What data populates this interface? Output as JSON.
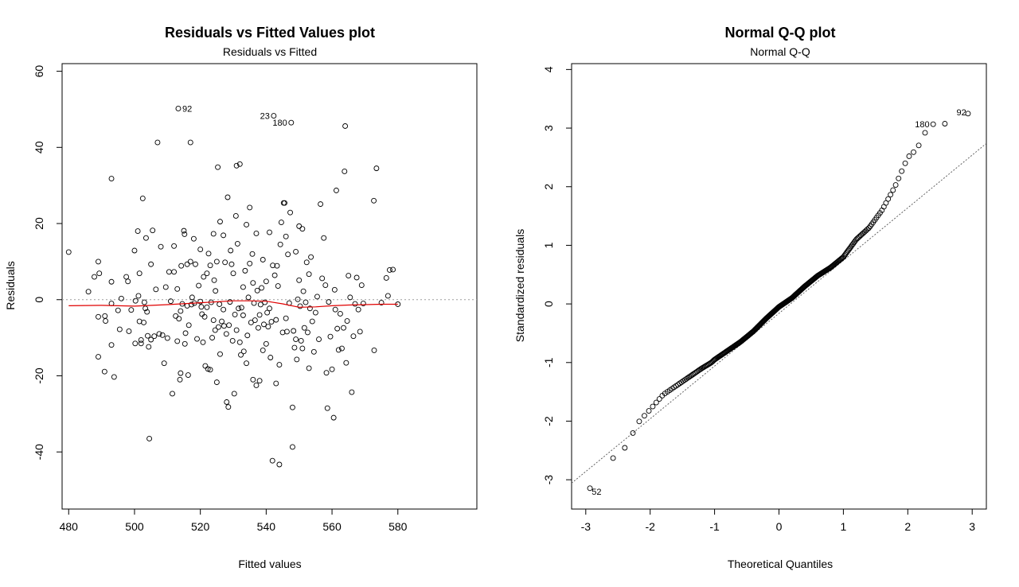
{
  "panels": [
    {
      "title": "Residuals vs Fitted Values plot",
      "subtitle": "Residuals vs Fitted",
      "xlabel": "Fitted values",
      "ylabel": "Residuals"
    },
    {
      "title": "Normal Q-Q plot",
      "subtitle": "Normal Q-Q",
      "xlabel": "Theoretical Quantiles",
      "ylabel": "Standardized residuals"
    }
  ],
  "chart_data": [
    {
      "type": "scatter",
      "title": "Residuals vs Fitted",
      "xlabel": "Fitted values",
      "ylabel": "Residuals",
      "xlim": [
        478,
        604
      ],
      "ylim": [
        -55,
        62
      ],
      "xticks": [
        480,
        500,
        520,
        540,
        560,
        580
      ],
      "yticks": [
        -40,
        -20,
        0,
        20,
        40,
        60
      ],
      "tick_labels_x": [
        "480",
        "500",
        "520",
        "540",
        "560",
        "580"
      ],
      "tick_labels_y": [
        "-40",
        "-20",
        "0",
        "20",
        "40",
        "60"
      ],
      "reference_line_y": 0,
      "points": [
        [
          480.0,
          12.5
        ],
        [
          486.0,
          2.1
        ],
        [
          487.8,
          6.0
        ],
        [
          489.0,
          10.0
        ],
        [
          489.3,
          6.9
        ],
        [
          489.0,
          -4.5
        ],
        [
          489.0,
          -15.0
        ],
        [
          490.9,
          -18.9
        ],
        [
          491.0,
          -4.3
        ],
        [
          491.2,
          -5.6
        ],
        [
          493.0,
          31.8
        ],
        [
          493.0,
          -11.9
        ],
        [
          493.0,
          4.7
        ],
        [
          493.0,
          -1.0
        ],
        [
          493.8,
          -20.3
        ],
        [
          495.0,
          -2.8
        ],
        [
          495.5,
          -7.8
        ],
        [
          496.0,
          0.3
        ],
        [
          497.5,
          6.0
        ],
        [
          498.0,
          4.8
        ],
        [
          498.3,
          -8.3
        ],
        [
          499.0,
          -2.7
        ],
        [
          500.0,
          12.9
        ],
        [
          500.2,
          -11.5
        ],
        [
          500.3,
          -0.3
        ],
        [
          501.0,
          18.0
        ],
        [
          501.2,
          1.0
        ],
        [
          501.5,
          6.9
        ],
        [
          501.5,
          -5.7
        ],
        [
          502.0,
          -10.6
        ],
        [
          502.0,
          -11.5
        ],
        [
          502.5,
          26.6
        ],
        [
          502.8,
          -6.0
        ],
        [
          503.0,
          -0.7
        ],
        [
          503.3,
          -2.3
        ],
        [
          503.5,
          16.2
        ],
        [
          503.8,
          -3.2
        ],
        [
          504.0,
          -9.5
        ],
        [
          504.3,
          -12.4
        ],
        [
          504.5,
          -36.5
        ],
        [
          505.0,
          9.3
        ],
        [
          505.0,
          -10.5
        ],
        [
          505.5,
          18.2
        ],
        [
          506.0,
          -9.6
        ],
        [
          506.5,
          2.7
        ],
        [
          507.0,
          41.3
        ],
        [
          507.5,
          -9.0
        ],
        [
          508.0,
          13.9
        ],
        [
          508.5,
          -9.3
        ],
        [
          509.0,
          -16.7
        ],
        [
          509.5,
          3.3
        ],
        [
          510.0,
          -10.1
        ],
        [
          510.5,
          7.3
        ],
        [
          511.0,
          -0.4
        ],
        [
          511.5,
          -24.7
        ],
        [
          512.0,
          14.1
        ],
        [
          512.0,
          7.3
        ],
        [
          512.5,
          -4.3
        ],
        [
          513.0,
          2.8
        ],
        [
          513.0,
          -10.9
        ],
        [
          513.3,
          50.2
        ],
        [
          513.5,
          -5.0
        ],
        [
          513.8,
          -21.0
        ],
        [
          514.0,
          -19.3
        ],
        [
          514.0,
          -3.0
        ],
        [
          514.2,
          8.9
        ],
        [
          514.5,
          -1.1
        ],
        [
          515.0,
          18.1
        ],
        [
          515.2,
          17.2
        ],
        [
          515.3,
          -11.6
        ],
        [
          515.5,
          -8.8
        ],
        [
          516.0,
          9.3
        ],
        [
          516.0,
          -1.6
        ],
        [
          516.3,
          -19.8
        ],
        [
          516.5,
          -6.7
        ],
        [
          517.0,
          41.3
        ],
        [
          517.0,
          10.0
        ],
        [
          517.3,
          -1.3
        ],
        [
          517.5,
          0.6
        ],
        [
          518.0,
          16.0
        ],
        [
          518.2,
          -0.9
        ],
        [
          518.5,
          9.3
        ],
        [
          519.0,
          -10.3
        ],
        [
          519.5,
          3.7
        ],
        [
          520.0,
          13.2
        ],
        [
          520.0,
          -0.5
        ],
        [
          520.3,
          -1.9
        ],
        [
          520.5,
          -3.8
        ],
        [
          520.8,
          -11.2
        ],
        [
          521.0,
          6.0
        ],
        [
          521.3,
          -4.5
        ],
        [
          521.5,
          -17.4
        ],
        [
          522.0,
          -2.0
        ],
        [
          522.0,
          6.9
        ],
        [
          522.3,
          -18.2
        ],
        [
          522.5,
          12.1
        ],
        [
          523.0,
          -18.4
        ],
        [
          523.0,
          9.0
        ],
        [
          523.3,
          -0.7
        ],
        [
          523.6,
          -10.0
        ],
        [
          524.0,
          17.3
        ],
        [
          524.0,
          -5.4
        ],
        [
          524.2,
          5.1
        ],
        [
          524.5,
          -8.0
        ],
        [
          524.6,
          2.3
        ],
        [
          525.0,
          10.0
        ],
        [
          525.0,
          -21.7
        ],
        [
          525.3,
          34.8
        ],
        [
          525.5,
          -7.2
        ],
        [
          525.8,
          -1.2
        ],
        [
          526.0,
          -14.3
        ],
        [
          526.0,
          20.5
        ],
        [
          526.5,
          -5.7
        ],
        [
          527.0,
          16.9
        ],
        [
          527.0,
          -2.6
        ],
        [
          527.2,
          -6.9
        ],
        [
          527.5,
          9.8
        ],
        [
          527.9,
          -9.0
        ],
        [
          528.0,
          -26.9
        ],
        [
          528.3,
          26.9
        ],
        [
          528.5,
          -28.2
        ],
        [
          528.7,
          -6.7
        ],
        [
          529.0,
          -0.6
        ],
        [
          529.2,
          12.9
        ],
        [
          529.5,
          9.3
        ],
        [
          529.8,
          -10.8
        ],
        [
          530.0,
          6.9
        ],
        [
          530.3,
          -24.7
        ],
        [
          530.5,
          -3.9
        ],
        [
          530.8,
          22.0
        ],
        [
          531.0,
          35.2
        ],
        [
          531.0,
          -8.0
        ],
        [
          531.3,
          14.7
        ],
        [
          531.6,
          -2.3
        ],
        [
          532.0,
          35.6
        ],
        [
          532.0,
          -11.2
        ],
        [
          532.3,
          -14.5
        ],
        [
          532.5,
          -2.1
        ],
        [
          533.0,
          -4.1
        ],
        [
          533.0,
          3.3
        ],
        [
          533.2,
          -13.6
        ],
        [
          533.6,
          7.6
        ],
        [
          534.0,
          -16.7
        ],
        [
          534.0,
          19.7
        ],
        [
          534.3,
          -9.4
        ],
        [
          534.6,
          0.6
        ],
        [
          535.0,
          24.2
        ],
        [
          535.0,
          9.5
        ],
        [
          535.4,
          -6.0
        ],
        [
          535.8,
          12.0
        ],
        [
          536.0,
          -21.0
        ],
        [
          536.0,
          4.4
        ],
        [
          536.3,
          -0.9
        ],
        [
          536.6,
          -5.4
        ],
        [
          537.0,
          -22.5
        ],
        [
          537.0,
          17.4
        ],
        [
          537.3,
          2.4
        ],
        [
          537.6,
          -7.4
        ],
        [
          538.0,
          -21.3
        ],
        [
          538.0,
          -4.0
        ],
        [
          538.3,
          -1.3
        ],
        [
          538.6,
          3.1
        ],
        [
          539.0,
          -13.3
        ],
        [
          539.0,
          10.5
        ],
        [
          539.3,
          -6.5
        ],
        [
          539.6,
          -0.7
        ],
        [
          540.0,
          -11.6
        ],
        [
          540.0,
          4.8
        ],
        [
          540.3,
          -3.4
        ],
        [
          540.6,
          -7.1
        ],
        [
          541.0,
          -2.3
        ],
        [
          541.0,
          17.7
        ],
        [
          541.3,
          -15.2
        ],
        [
          541.6,
          -5.8
        ],
        [
          541.9,
          -42.3
        ],
        [
          542.0,
          9.0
        ],
        [
          542.3,
          48.3
        ],
        [
          542.6,
          6.4
        ],
        [
          543.0,
          -22.0
        ],
        [
          543.0,
          -5.3
        ],
        [
          543.3,
          8.9
        ],
        [
          543.6,
          3.6
        ],
        [
          544.0,
          -17.1
        ],
        [
          544.0,
          -43.3
        ],
        [
          544.3,
          14.5
        ],
        [
          544.6,
          20.3
        ],
        [
          545.0,
          -8.6
        ],
        [
          545.3,
          25.4
        ],
        [
          545.6,
          25.4
        ],
        [
          546.0,
          -4.9
        ],
        [
          546.0,
          16.6
        ],
        [
          546.3,
          -8.4
        ],
        [
          546.6,
          11.9
        ],
        [
          547.0,
          -0.9
        ],
        [
          547.3,
          22.9
        ],
        [
          547.6,
          46.5
        ],
        [
          548.0,
          -28.3
        ],
        [
          548.0,
          -38.7
        ],
        [
          548.3,
          -8.2
        ],
        [
          548.6,
          -12.6
        ],
        [
          549.0,
          -10.4
        ],
        [
          549.0,
          12.6
        ],
        [
          549.3,
          -15.7
        ],
        [
          549.6,
          0.1
        ],
        [
          550.0,
          19.3
        ],
        [
          550.0,
          5.1
        ],
        [
          550.3,
          -1.7
        ],
        [
          550.6,
          -10.8
        ],
        [
          551.0,
          -12.8
        ],
        [
          551.0,
          18.6
        ],
        [
          551.3,
          2.2
        ],
        [
          551.6,
          -7.4
        ],
        [
          552.0,
          -0.7
        ],
        [
          552.3,
          9.8
        ],
        [
          552.6,
          -8.6
        ],
        [
          553.0,
          6.7
        ],
        [
          553.0,
          -18.0
        ],
        [
          553.3,
          -2.3
        ],
        [
          553.6,
          11.2
        ],
        [
          554.0,
          -5.7
        ],
        [
          554.5,
          -13.7
        ],
        [
          555.0,
          -3.4
        ],
        [
          555.5,
          0.8
        ],
        [
          556.0,
          -10.4
        ],
        [
          556.5,
          25.1
        ],
        [
          557.0,
          5.6
        ],
        [
          557.5,
          16.2
        ],
        [
          558.0,
          3.8
        ],
        [
          558.3,
          -19.2
        ],
        [
          558.6,
          -28.5
        ],
        [
          559.0,
          -0.6
        ],
        [
          559.5,
          -9.7
        ],
        [
          560.0,
          -18.3
        ],
        [
          560.5,
          -31.0
        ],
        [
          560.8,
          2.6
        ],
        [
          561.0,
          -2.6
        ],
        [
          561.3,
          28.7
        ],
        [
          561.6,
          -7.6
        ],
        [
          562.0,
          -13.2
        ],
        [
          562.5,
          -3.7
        ],
        [
          563.0,
          -12.8
        ],
        [
          563.5,
          -7.4
        ],
        [
          563.8,
          33.7
        ],
        [
          564.0,
          45.6
        ],
        [
          564.3,
          -16.6
        ],
        [
          564.6,
          -5.6
        ],
        [
          565.0,
          6.3
        ],
        [
          565.5,
          0.6
        ],
        [
          566.0,
          -24.3
        ],
        [
          566.5,
          -9.6
        ],
        [
          567.0,
          -1.1
        ],
        [
          567.5,
          5.8
        ],
        [
          568.0,
          -2.6
        ],
        [
          568.5,
          -8.4
        ],
        [
          569.0,
          3.8
        ],
        [
          569.5,
          -1.0
        ],
        [
          572.7,
          26.0
        ],
        [
          572.8,
          -13.3
        ],
        [
          573.5,
          34.5
        ],
        [
          575.0,
          -0.8
        ],
        [
          576.5,
          5.7
        ],
        [
          577.0,
          1.0
        ],
        [
          577.5,
          7.8
        ],
        [
          578.5,
          7.9
        ],
        [
          580.0,
          -1.2
        ]
      ],
      "smoother": [
        [
          480,
          -1.6
        ],
        [
          490,
          -1.5
        ],
        [
          500,
          -1.7
        ],
        [
          510,
          -1.3
        ],
        [
          520,
          -0.8
        ],
        [
          530,
          -0.3
        ],
        [
          535,
          -0.3
        ],
        [
          540,
          -0.4
        ],
        [
          545,
          -1.1
        ],
        [
          550,
          -2.0
        ],
        [
          555,
          -1.9
        ],
        [
          560,
          -1.6
        ],
        [
          565,
          -1.4
        ],
        [
          570,
          -1.3
        ],
        [
          575,
          -1.2
        ],
        [
          580,
          -1.2
        ]
      ],
      "labeled_points": [
        {
          "label": "92",
          "x": 513.3,
          "y": 50.2,
          "side": "right"
        },
        {
          "label": "23",
          "x": 542.3,
          "y": 48.3,
          "side": "left"
        },
        {
          "label": "180",
          "x": 547.6,
          "y": 46.5,
          "side": "left"
        }
      ],
      "colors": {
        "points": "#000000",
        "smoother": "#e00000",
        "reference": "#9e9e9e"
      }
    },
    {
      "type": "scatter",
      "title": "Normal Q-Q",
      "xlabel": "Theoretical Quantiles",
      "ylabel": "Standardized residuals",
      "xlim": [
        -3.22,
        3.22
      ],
      "ylim": [
        -3.5,
        4.1
      ],
      "xticks": [
        -3,
        -2,
        -1,
        0,
        1,
        2,
        3
      ],
      "yticks": [
        -3,
        -2,
        -1,
        0,
        1,
        2,
        3,
        4
      ],
      "tick_labels_x": [
        "-3",
        "-2",
        "-1",
        "0",
        "1",
        "2",
        "3"
      ],
      "tick_labels_y": [
        "-3",
        "-2",
        "-1",
        "0",
        "1",
        "2",
        "3",
        "4"
      ],
      "n_points": 300,
      "reference_line": {
        "slope": 0.9,
        "intercept": -0.16
      },
      "quantile_curve": [
        [
          -2.97,
          -3.2
        ],
        [
          -2.64,
          -2.68
        ],
        [
          -2.47,
          -2.55
        ],
        [
          -2.35,
          -2.4
        ],
        [
          -2.2,
          -2.04
        ],
        [
          -2.0,
          -1.8
        ],
        [
          -1.8,
          -1.55
        ],
        [
          -1.6,
          -1.4
        ],
        [
          -1.4,
          -1.25
        ],
        [
          -1.2,
          -1.1
        ],
        [
          -1.05,
          -1.0
        ],
        [
          -1.0,
          -0.95
        ],
        [
          -0.8,
          -0.8
        ],
        [
          -0.6,
          -0.65
        ],
        [
          -0.4,
          -0.47
        ],
        [
          -0.2,
          -0.25
        ],
        [
          0.0,
          -0.05
        ],
        [
          0.2,
          0.1
        ],
        [
          0.4,
          0.3
        ],
        [
          0.6,
          0.48
        ],
        [
          0.8,
          0.62
        ],
        [
          1.0,
          0.8
        ],
        [
          1.2,
          1.1
        ],
        [
          1.4,
          1.3
        ],
        [
          1.6,
          1.6
        ],
        [
          1.8,
          2.0
        ],
        [
          2.0,
          2.5
        ],
        [
          2.1,
          2.6
        ],
        [
          2.2,
          2.75
        ],
        [
          2.3,
          3.0
        ],
        [
          2.4,
          3.07
        ],
        [
          2.5,
          3.08
        ],
        [
          2.66,
          3.07
        ],
        [
          2.97,
          3.27
        ]
      ],
      "labeled_points": [
        {
          "label": "92",
          "x": 2.97,
          "y": 3.27,
          "side": "left"
        },
        {
          "label": "180",
          "x": 2.4,
          "y": 3.07,
          "side": "left"
        },
        {
          "label": "52",
          "x": -2.97,
          "y": -3.2,
          "side": "right"
        }
      ],
      "colors": {
        "points": "#000000",
        "reference": "#555555"
      }
    }
  ]
}
